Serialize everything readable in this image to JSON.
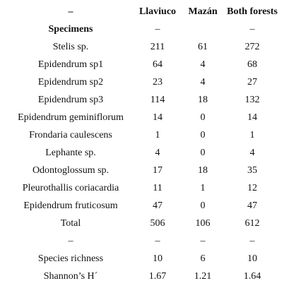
{
  "table": {
    "header": [
      "–",
      "Llaviuco",
      "Mazán",
      "Both forests"
    ],
    "rows": [
      [
        "Specimens",
        "–",
        null,
        "–"
      ],
      [
        "Stelis sp.",
        211,
        61,
        272
      ],
      [
        "Epidendrum sp1",
        64,
        4,
        68
      ],
      [
        "Epidendrum sp2",
        23,
        4,
        27
      ],
      [
        "Epidendrum sp3",
        114,
        18,
        132
      ],
      [
        "Epidendrum geminiflorum",
        14,
        0,
        14
      ],
      [
        "Frondaria caulescens",
        1,
        0,
        1
      ],
      [
        "Lephante sp.",
        4,
        0,
        4
      ],
      [
        "Odontoglossum sp.",
        17,
        18,
        35
      ],
      [
        "Pleurothallis coriacardia",
        11,
        1,
        12
      ],
      [
        "Epidendrum fruticosum",
        47,
        0,
        47
      ],
      [
        "Total",
        506,
        106,
        612
      ],
      [
        "–",
        "–",
        "–",
        "–"
      ],
      [
        "Species richness",
        10,
        6,
        10
      ],
      [
        "Shannon’s H´",
        1.67,
        1.21,
        1.64
      ]
    ]
  }
}
